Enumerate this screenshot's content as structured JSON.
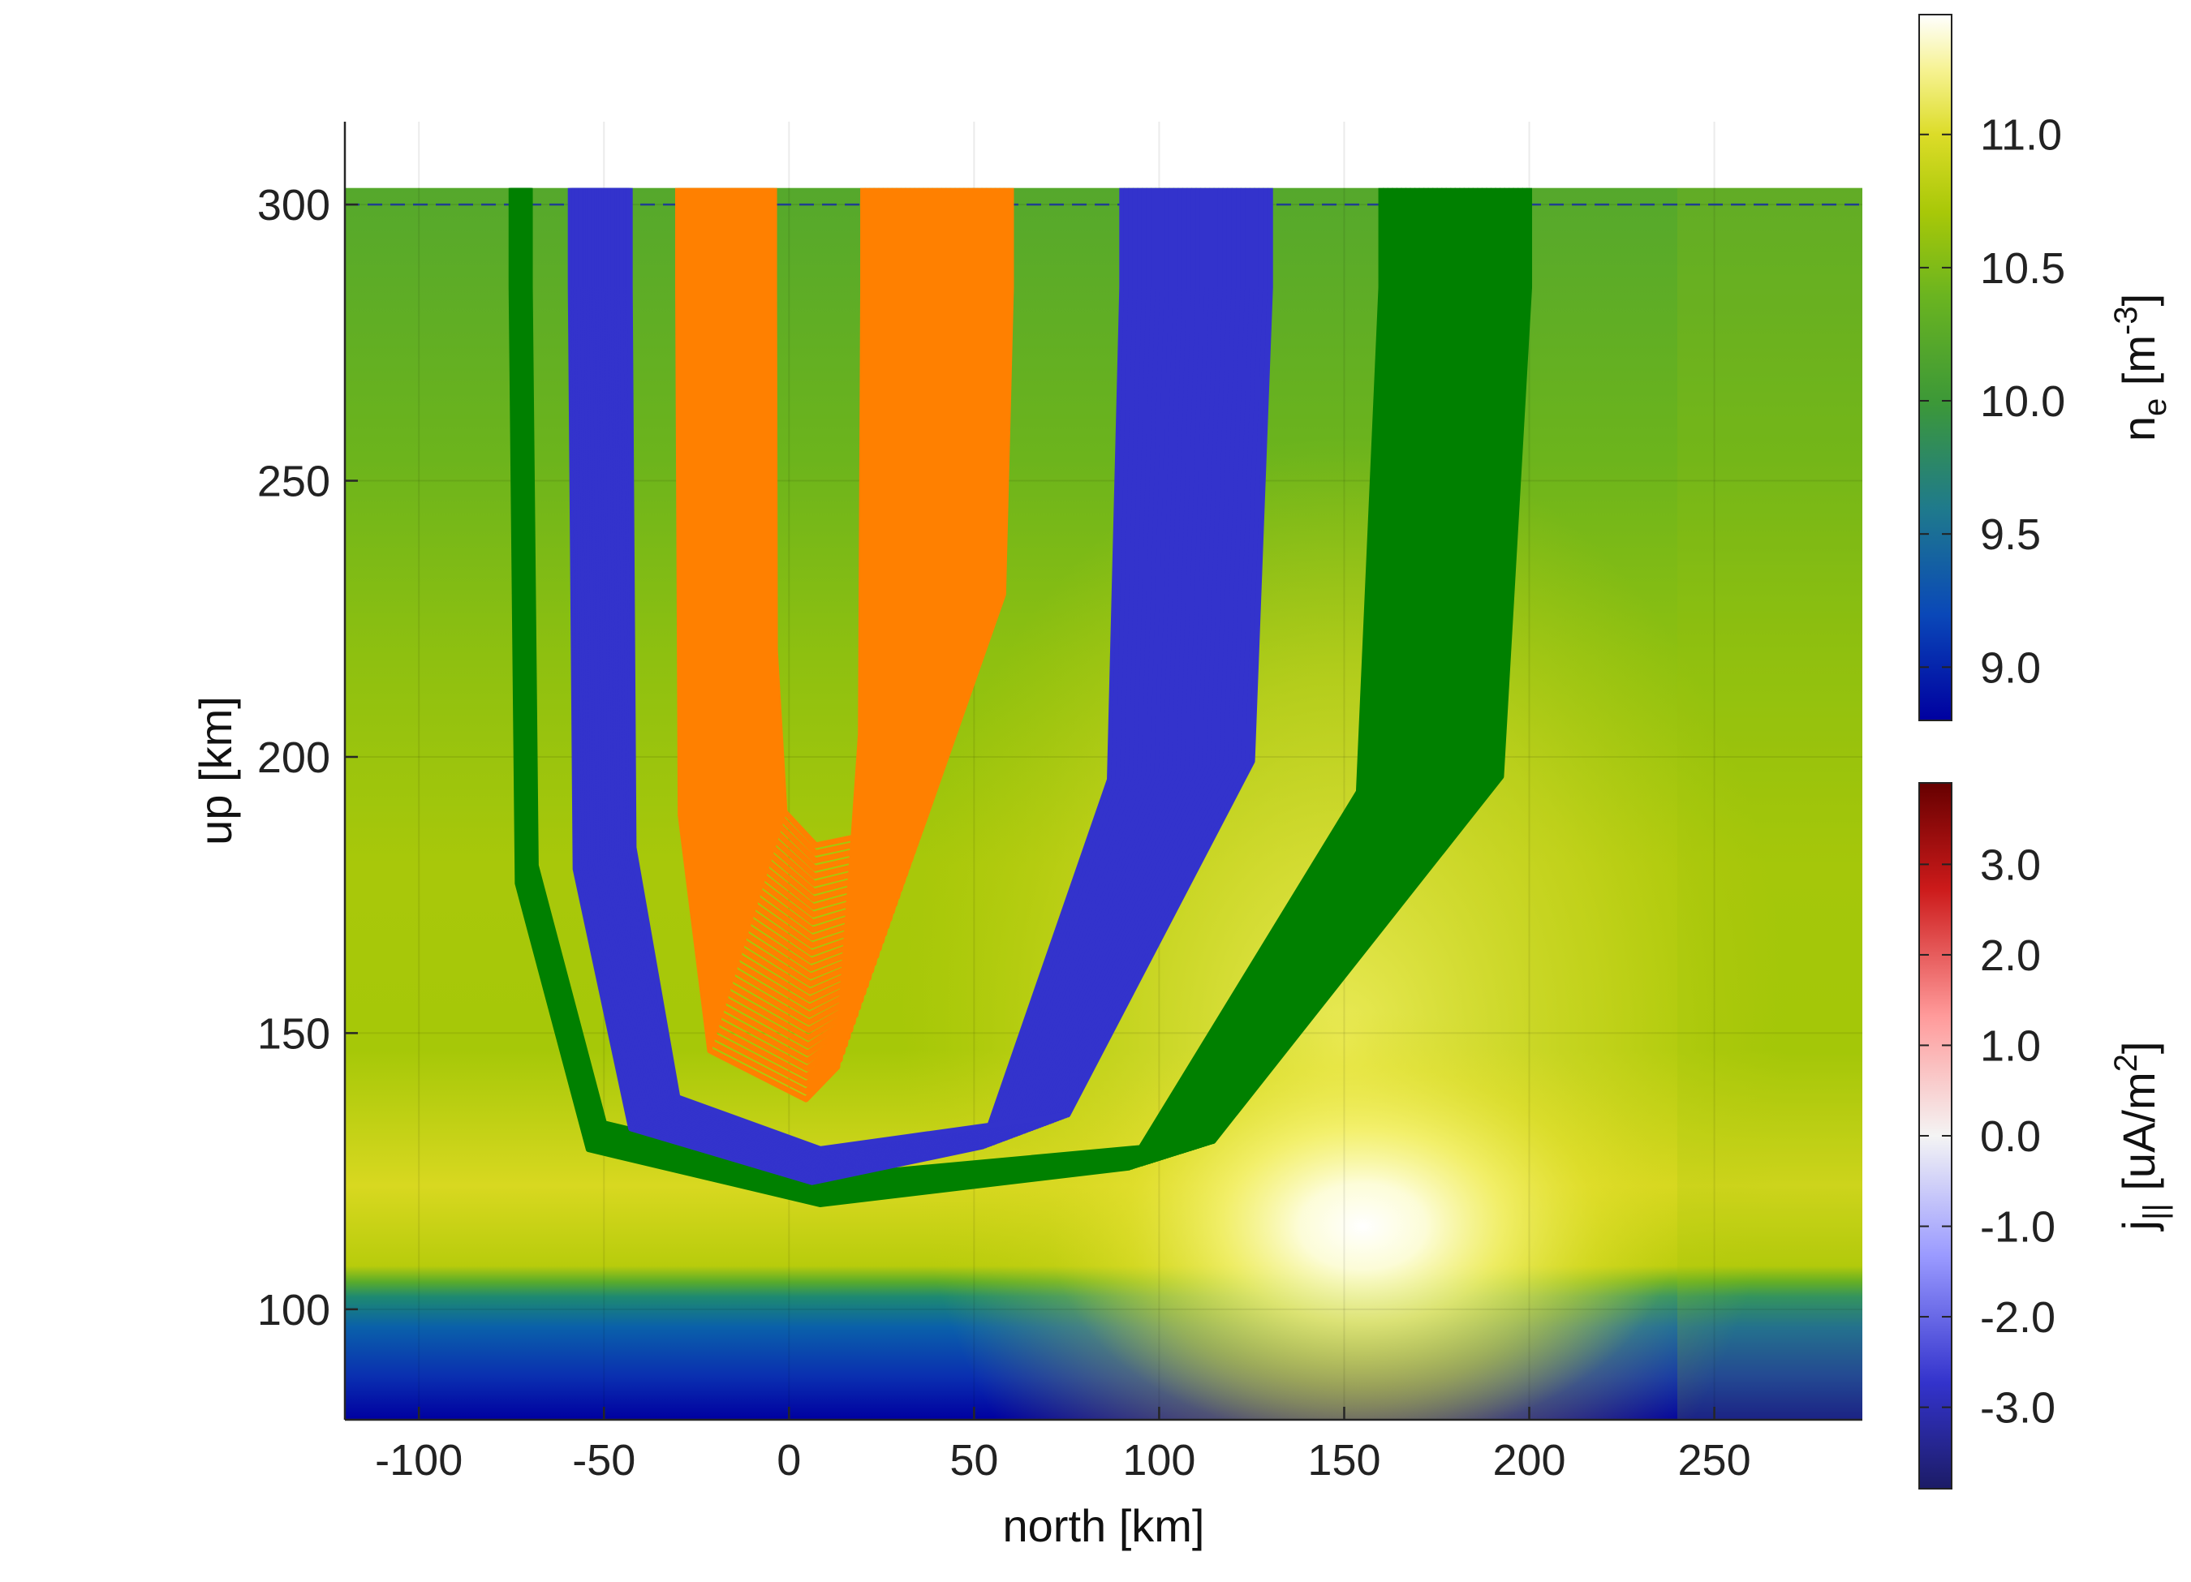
{
  "chart_data": {
    "type": "heatmap",
    "xlabel": "north [km]",
    "ylabel": "up [km]",
    "xlim": [
      -120,
      290
    ],
    "ylim": [
      80,
      315
    ],
    "xticks": [
      -100,
      -50,
      0,
      50,
      100,
      150,
      200,
      250
    ],
    "yticks": [
      100,
      150,
      200,
      250,
      300
    ],
    "grid": true,
    "reference_line": {
      "y": 300,
      "style": "dashed",
      "color": "#1f3f8f"
    },
    "heatmap": {
      "quantity": "electron density n_e (log10 m^-3)",
      "extent_x": [
        -120,
        290
      ],
      "extent_y": [
        80,
        303
      ]
    },
    "field_line_bundles": [
      {
        "color": "#008000",
        "x_left": [
          -75,
          -70
        ],
        "x_right": [
          160,
          200
        ],
        "y_top": 303,
        "min_y": [
          119,
          124
        ],
        "min_x": 5
      },
      {
        "color": "#3333cc",
        "x_left": [
          -59,
          -43
        ],
        "x_right": [
          90,
          130
        ],
        "y_top": 303,
        "min_y": [
          123,
          129
        ],
        "min_x": 5
      },
      {
        "color": "#ff8000",
        "x_left": [
          -30,
          -4
        ],
        "x_right": [
          20,
          60
        ],
        "y_top": 303,
        "min_y": [
          138,
          184
        ],
        "min_x": 5
      }
    ],
    "colorbars": [
      {
        "name": "n_e",
        "label_main": "n",
        "label_sub": "e",
        "label_units": " [m",
        "label_sup": "-3",
        "label_close": "]",
        "range": [
          8.8,
          11.45
        ],
        "ticks": [
          "9.0",
          "9.5",
          "10.0",
          "10.5",
          "11.0"
        ],
        "tick_values": [
          9.0,
          9.5,
          10.0,
          10.5,
          11.0
        ],
        "colormap": [
          "#0000a0",
          "#0a50b4",
          "#2f8a4e",
          "#66ae21",
          "#a9ca06",
          "#e0e03a",
          "#fefebc",
          "#ffffff"
        ]
      },
      {
        "name": "j_parallel",
        "label_main": "j",
        "label_sub": "||",
        "label_units": " [uA/m",
        "label_sup": "2",
        "label_close": "]",
        "range": [
          -3.9,
          3.9
        ],
        "ticks": [
          "-3.0",
          "-2.0",
          "-1.0",
          "0.0",
          "1.0",
          "2.0",
          "3.0"
        ],
        "tick_values": [
          -3.0,
          -2.0,
          -1.0,
          0.0,
          1.0,
          2.0,
          3.0
        ],
        "colormap": [
          "#1c1c66",
          "#3333cc",
          "#9a9aff",
          "#f4f4f4",
          "#ff9a9a",
          "#cc1a1a",
          "#660000"
        ]
      }
    ]
  }
}
